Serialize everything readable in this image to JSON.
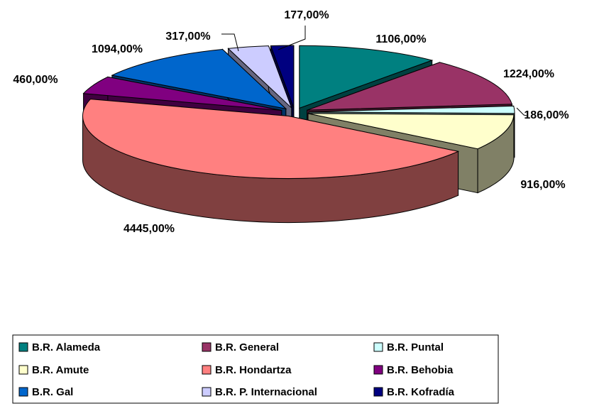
{
  "chart_data": {
    "type": "pie",
    "categories": [
      "B.R. Alameda",
      "B.R. General",
      "B.R. Puntal",
      "B.R. Amute",
      "B.R. Hondartza",
      "B.R. Behobia",
      "B.R. Gal",
      "B.R. P. Internacional",
      "B.R. Kofradía"
    ],
    "values": [
      1106,
      1224,
      186,
      916,
      4445,
      460,
      1094,
      317,
      177
    ],
    "value_labels": [
      "1106,00%",
      "1224,00%",
      "186,00%",
      "916,00%",
      "4445,00%",
      "460,00%",
      "1094,00%",
      "317,00%",
      "177,00%"
    ],
    "colors": [
      "#008080",
      "#993366",
      "#CCFFFF",
      "#FFFFCC",
      "#FF8080",
      "#800080",
      "#0066CC",
      "#CCCCFF",
      "#000080"
    ],
    "legend": "bottom"
  }
}
